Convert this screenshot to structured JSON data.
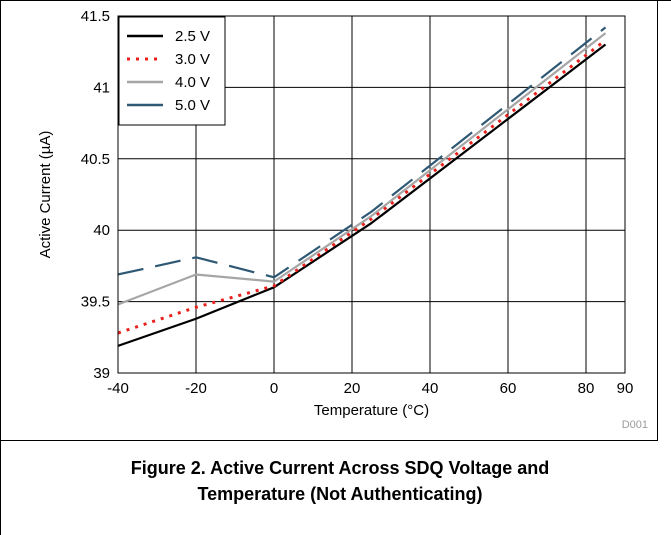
{
  "chart_data": {
    "type": "line",
    "title": "",
    "xlabel": "Temperature (°C)",
    "ylabel": "Active Current (µA)",
    "xlim": [
      -40,
      90
    ],
    "ylim": [
      39,
      41.5
    ],
    "xticks": [
      -40,
      -20,
      0,
      20,
      40,
      60,
      80,
      90
    ],
    "yticks": [
      39,
      39.5,
      40,
      40.5,
      41,
      41.5
    ],
    "xtick_labels": [
      "-40",
      "-20",
      "0",
      "20",
      "40",
      "60",
      "80",
      "90"
    ],
    "ytick_labels": [
      "39",
      "39.5",
      "40",
      "40.5",
      "41",
      "41.5"
    ],
    "grid": true,
    "legend_position": "top-left",
    "series": [
      {
        "name": "2.5 V",
        "color": "#000000",
        "style": "solid",
        "x": [
          -40,
          -20,
          0,
          25,
          85
        ],
        "y": [
          39.19,
          39.38,
          39.6,
          40.05,
          41.3
        ]
      },
      {
        "name": "3.0 V",
        "color": "#e8201c",
        "style": "dotted",
        "x": [
          -40,
          -20,
          0,
          25,
          85
        ],
        "y": [
          39.28,
          39.46,
          39.61,
          40.08,
          41.33
        ]
      },
      {
        "name": "4.0 V",
        "color": "#a6a6a6",
        "style": "solid",
        "x": [
          -40,
          -20,
          0,
          25,
          85
        ],
        "y": [
          39.48,
          39.69,
          39.64,
          40.1,
          41.38
        ]
      },
      {
        "name": "5.0 V",
        "color": "#2e5873",
        "style": "dashed",
        "x": [
          -40,
          -20,
          0,
          25,
          85
        ],
        "y": [
          39.69,
          39.81,
          39.67,
          40.13,
          41.42
        ]
      }
    ],
    "annotation": "D001"
  },
  "caption": {
    "line1": "Figure 2. Active Current Across SDQ Voltage and",
    "line2": "Temperature (Not Authenticating)"
  }
}
